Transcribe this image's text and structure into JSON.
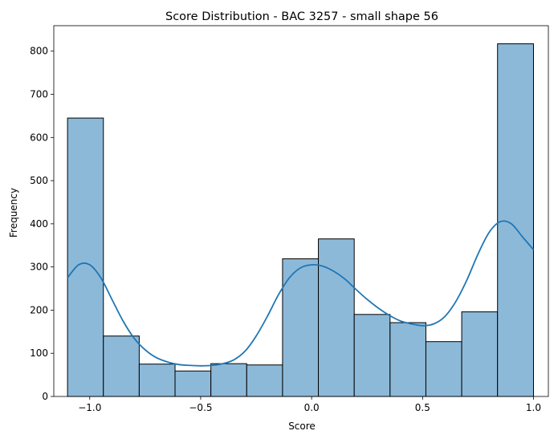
{
  "chart_data": {
    "type": "bar",
    "title": "Score Distribution - BAC 3257 - small shape 56",
    "xlabel": "Score",
    "ylabel": "Frequency",
    "xlim": [
      -1.162,
      1.067
    ],
    "ylim": [
      0,
      859
    ],
    "grid": false,
    "legend": "none",
    "x_ticks": [
      -1.0,
      -0.5,
      0.0,
      0.5,
      1.0
    ],
    "x_tick_labels": [
      "−1.0",
      "−0.5",
      "0.0",
      "0.5",
      "1.0"
    ],
    "y_ticks": [
      0,
      100,
      200,
      300,
      400,
      500,
      600,
      700,
      800
    ],
    "y_tick_labels": [
      "0",
      "100",
      "200",
      "300",
      "400",
      "500",
      "600",
      "700",
      "800"
    ],
    "bin_edges": [
      -1.1,
      -0.9385,
      -0.777,
      -0.6155,
      -0.454,
      -0.2925,
      -0.131,
      0.0305,
      0.192,
      0.3535,
      0.515,
      0.6765,
      0.838,
      1.0
    ],
    "counts": [
      645,
      140,
      75,
      59,
      76,
      73,
      319,
      365,
      190,
      171,
      127,
      196,
      817
    ],
    "kde": {
      "x": [
        -1.1,
        -1.05,
        -1.0,
        -0.95,
        -0.9,
        -0.85,
        -0.8,
        -0.75,
        -0.7,
        -0.65,
        -0.6,
        -0.55,
        -0.5,
        -0.45,
        -0.4,
        -0.35,
        -0.3,
        -0.25,
        -0.2,
        -0.15,
        -0.1,
        -0.05,
        0.0,
        0.05,
        0.1,
        0.15,
        0.2,
        0.25,
        0.3,
        0.35,
        0.4,
        0.45,
        0.5,
        0.55,
        0.6,
        0.65,
        0.7,
        0.75,
        0.8,
        0.85,
        0.9,
        0.95,
        1.0
      ],
      "y": [
        275,
        305,
        305,
        275,
        225,
        175,
        135,
        108,
        90,
        80,
        74,
        72,
        71,
        72,
        76,
        85,
        105,
        140,
        185,
        235,
        275,
        298,
        305,
        302,
        290,
        272,
        248,
        225,
        205,
        188,
        175,
        168,
        164,
        168,
        185,
        220,
        270,
        330,
        380,
        405,
        400,
        370,
        340
      ]
    },
    "colors": {
      "bar_fill": "#8db9d9",
      "bar_edge": "#000000",
      "kde_line": "#1f77b4"
    }
  }
}
